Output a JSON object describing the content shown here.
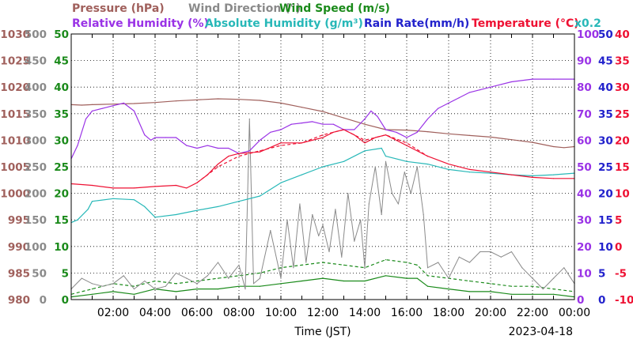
{
  "chart_data": {
    "type": "line",
    "legend": {
      "row1": [
        {
          "text": "Pressure (hPa)",
          "color": "#a0605c"
        },
        {
          "text": "Wind Direction (°)",
          "color": "#8a8a8a"
        },
        {
          "text": "Wind Speed (m/s)",
          "color": "#1a8a1a"
        }
      ],
      "row2": [
        {
          "text": "Relative Humidity (%)",
          "color": "#9a33e6"
        },
        {
          "text": "Absolute Humidity (g/m³)",
          "color": "#28b8b8"
        },
        {
          "text": "Rain Rate(mm/h)",
          "color": "#2222cc"
        },
        {
          "text": "Temperature (°C)",
          "color": "#ee1133"
        }
      ],
      "scale_note": "x0.2"
    },
    "xlabel": "Time (JST)",
    "date": "2023-04-18",
    "x_ticks": [
      "02:00",
      "04:00",
      "06:00",
      "08:00",
      "10:00",
      "12:00",
      "14:00",
      "16:00",
      "18:00",
      "20:00",
      "22:00",
      "00:00"
    ],
    "x_range_hours": [
      0,
      24
    ],
    "grid": true,
    "axes": {
      "pressure": {
        "color": "#a0605c",
        "range": [
          980,
          1030
        ],
        "ticks": [
          "980",
          "985",
          "990",
          "995",
          "1000",
          "1005",
          "1010",
          "1015",
          "1020",
          "1025",
          "1030"
        ]
      },
      "wind_direction": {
        "color": "#8a8a8a",
        "range": [
          0,
          500
        ],
        "ticks": [
          "0",
          "50",
          "100",
          "150",
          "200",
          "250",
          "300",
          "350",
          "400",
          "450",
          "500"
        ]
      },
      "wind_speed": {
        "color": "#1a8a1a",
        "range": [
          0,
          50
        ],
        "ticks": [
          "0",
          "5",
          "10",
          "15",
          "20",
          "25",
          "30",
          "35",
          "40",
          "45",
          "50"
        ]
      },
      "humidity": {
        "color": "#9a33e6",
        "range": [
          0,
          100
        ],
        "ticks": [
          "0",
          "10",
          "20",
          "30",
          "40",
          "50",
          "60",
          "70",
          "80",
          "90",
          "100"
        ]
      },
      "rain_rate": {
        "color": "#2222cc",
        "range": [
          0,
          50
        ],
        "ticks": [
          "0",
          "5",
          "10",
          "15",
          "20",
          "25",
          "30",
          "35",
          "40",
          "45",
          "50"
        ]
      },
      "temperature": {
        "color": "#ee1133",
        "range": [
          -10,
          40
        ],
        "ticks": [
          "-10",
          "-5",
          "0",
          "5",
          "10",
          "15",
          "20",
          "25",
          "30",
          "35",
          "40"
        ]
      }
    },
    "series": [
      {
        "name": "Pressure (hPa)",
        "axis": "pressure",
        "color": "#a0605c",
        "x": [
          0.0,
          0.5,
          1.0,
          2.0,
          3.0,
          4.0,
          5.0,
          6.0,
          7.0,
          8.0,
          9.0,
          10.0,
          11.0,
          12.0,
          13.0,
          14.0,
          15.0,
          16.0,
          17.0,
          18.0,
          19.0,
          20.0,
          21.0,
          22.0,
          23.0,
          23.5,
          24.0
        ],
        "y": [
          1016.7,
          1016.6,
          1016.7,
          1016.8,
          1016.9,
          1017.1,
          1017.4,
          1017.6,
          1017.8,
          1017.7,
          1017.5,
          1017.0,
          1016.2,
          1015.4,
          1014.2,
          1013.0,
          1012.0,
          1011.9,
          1011.6,
          1011.2,
          1010.9,
          1010.6,
          1010.1,
          1009.6,
          1008.8,
          1008.6,
          1008.8
        ]
      },
      {
        "name": "Relative Humidity (%)",
        "axis": "humidity",
        "color": "#9a33e6",
        "x": [
          0.0,
          0.3,
          0.7,
          1.0,
          1.5,
          2.0,
          2.5,
          3.0,
          3.5,
          3.8,
          4.0,
          4.5,
          5.0,
          5.5,
          6.0,
          6.5,
          7.0,
          7.5,
          8.0,
          8.5,
          9.0,
          9.5,
          10.0,
          10.5,
          11.0,
          11.5,
          12.0,
          12.5,
          13.0,
          13.5,
          14.0,
          14.3,
          14.6,
          15.0,
          15.5,
          16.0,
          16.5,
          17.0,
          17.5,
          18.0,
          18.5,
          19.0,
          19.5,
          20.0,
          20.5,
          21.0,
          22.0,
          23.0,
          24.0
        ],
        "y": [
          53.0,
          58.0,
          68.0,
          71.0,
          72.0,
          73.0,
          74.0,
          71.0,
          62.0,
          60.0,
          61.0,
          61.0,
          61.0,
          58.0,
          57.0,
          58.0,
          57.0,
          57.0,
          55.0,
          56.0,
          60.0,
          63.0,
          64.0,
          66.0,
          66.5,
          67.0,
          66.0,
          66.0,
          64.0,
          64.0,
          68.0,
          71.0,
          69.0,
          64.0,
          63.0,
          61.0,
          63.0,
          68.0,
          72.0,
          74.0,
          76.0,
          78.0,
          79.0,
          80.0,
          81.0,
          82.0,
          83.0,
          83.0,
          83.0
        ]
      },
      {
        "name": "Absolute Humidity (g/m³)",
        "axis": "wind_speed",
        "color": "#28b8b8",
        "x": [
          0.0,
          0.3,
          0.8,
          1.0,
          2.0,
          3.0,
          3.5,
          4.0,
          5.0,
          6.0,
          7.0,
          8.0,
          9.0,
          10.0,
          11.0,
          12.0,
          13.0,
          14.0,
          14.8,
          15.0,
          16.0,
          17.0,
          18.0,
          19.0,
          20.0,
          21.0,
          22.0,
          23.0,
          24.0
        ],
        "y": [
          14.5,
          15.0,
          17.0,
          18.5,
          19.0,
          18.8,
          17.5,
          15.5,
          16.0,
          16.8,
          17.5,
          18.5,
          19.5,
          22.0,
          23.5,
          25.0,
          26.0,
          28.0,
          28.5,
          27.0,
          26.0,
          25.5,
          24.5,
          24.0,
          23.8,
          23.5,
          23.3,
          23.5,
          23.8
        ]
      },
      {
        "name": "Temperature (°C)",
        "axis": "temperature",
        "color": "#ee1133",
        "x": [
          0.0,
          1.0,
          2.0,
          3.0,
          4.0,
          5.0,
          5.5,
          6.0,
          6.5,
          7.0,
          7.5,
          8.0,
          9.0,
          10.0,
          11.0,
          12.0,
          12.5,
          13.0,
          13.5,
          14.0,
          14.5,
          15.0,
          15.5,
          16.0,
          17.0,
          18.0,
          19.0,
          20.0,
          21.0,
          22.0,
          23.0,
          24.0
        ],
        "y": [
          11.8,
          11.5,
          11.0,
          11.0,
          11.3,
          11.5,
          11.0,
          12.0,
          13.5,
          15.5,
          17.0,
          17.5,
          17.8,
          19.5,
          19.5,
          20.5,
          21.5,
          22.0,
          21.0,
          19.5,
          20.5,
          21.0,
          20.0,
          19.0,
          17.0,
          15.5,
          14.5,
          14.0,
          13.5,
          13.0,
          12.8,
          12.8
        ]
      },
      {
        "name": "Temperature dew-point (dashed)",
        "axis": "temperature",
        "color": "#ee1133",
        "dashed": true,
        "x": [
          6.0,
          7.0,
          8.0,
          9.0,
          10.0,
          11.0,
          12.0,
          13.0,
          14.0,
          15.0,
          16.0,
          17.0
        ],
        "y": [
          12.0,
          15.0,
          17.0,
          18.0,
          19.0,
          19.5,
          21.0,
          22.0,
          20.0,
          21.0,
          19.5,
          17.0
        ]
      },
      {
        "name": "Wind Direction (°)",
        "axis": "wind_direction",
        "color": "#8a8a8a",
        "x": [
          0.0,
          0.5,
          1.0,
          1.5,
          2.0,
          2.5,
          3.0,
          3.5,
          4.0,
          4.5,
          5.0,
          5.5,
          6.0,
          6.5,
          7.0,
          7.5,
          8.0,
          8.3,
          8.5,
          8.7,
          9.0,
          9.5,
          10.0,
          10.3,
          10.6,
          10.9,
          11.2,
          11.5,
          11.8,
          12.0,
          12.3,
          12.6,
          12.9,
          13.2,
          13.5,
          13.8,
          14.0,
          14.2,
          14.5,
          14.8,
          15.0,
          15.3,
          15.6,
          15.9,
          16.2,
          16.5,
          16.8,
          17.0,
          17.5,
          18.0,
          18.5,
          19.0,
          19.5,
          20.0,
          20.5,
          21.0,
          21.5,
          22.0,
          22.5,
          23.0,
          23.5,
          24.0
        ],
        "y": [
          20,
          40,
          30,
          25,
          30,
          45,
          20,
          35,
          20,
          25,
          50,
          40,
          30,
          45,
          70,
          40,
          65,
          20,
          340,
          30,
          40,
          130,
          40,
          150,
          60,
          180,
          70,
          160,
          120,
          140,
          90,
          170,
          80,
          200,
          110,
          150,
          60,
          180,
          250,
          160,
          260,
          200,
          180,
          240,
          200,
          250,
          160,
          60,
          70,
          40,
          80,
          70,
          90,
          90,
          80,
          90,
          60,
          40,
          20,
          40,
          60,
          30
        ]
      },
      {
        "name": "Wind Speed (m/s)",
        "axis": "wind_speed",
        "color": "#1a8a1a",
        "x": [
          0.0,
          1.0,
          2.0,
          3.0,
          4.0,
          5.0,
          6.0,
          7.0,
          8.0,
          9.0,
          10.0,
          11.0,
          12.0,
          13.0,
          14.0,
          15.0,
          16.0,
          16.5,
          17.0,
          18.0,
          19.0,
          20.0,
          21.0,
          22.0,
          23.0,
          24.0
        ],
        "y": [
          0.5,
          1.0,
          1.5,
          1.0,
          2.0,
          1.5,
          2.0,
          2.0,
          2.5,
          2.5,
          3.0,
          3.5,
          4.0,
          3.5,
          3.5,
          4.5,
          4.0,
          4.0,
          2.5,
          2.0,
          1.5,
          1.5,
          1.0,
          1.0,
          1.0,
          0.5
        ]
      },
      {
        "name": "Wind Speed gust (dashed)",
        "axis": "wind_speed",
        "color": "#1a8a1a",
        "dashed": true,
        "x": [
          0.0,
          1.0,
          2.0,
          3.0,
          4.0,
          5.0,
          6.0,
          7.0,
          8.0,
          9.0,
          10.0,
          11.0,
          12.0,
          13.0,
          14.0,
          15.0,
          16.0,
          16.5,
          17.0,
          18.0,
          19.0,
          20.0,
          21.0,
          22.0,
          23.0,
          24.0
        ],
        "y": [
          1.0,
          2.0,
          3.0,
          2.5,
          3.5,
          3.0,
          3.5,
          4.0,
          4.5,
          5.0,
          6.0,
          6.5,
          7.0,
          6.5,
          6.0,
          7.5,
          7.0,
          6.5,
          4.5,
          4.0,
          3.5,
          3.0,
          2.5,
          2.5,
          2.0,
          1.5
        ]
      }
    ]
  }
}
